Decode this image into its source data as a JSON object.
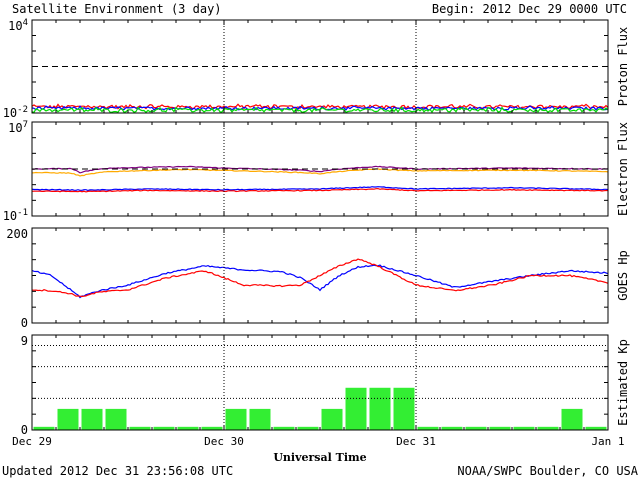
{
  "header": {
    "title": "Satellite Environment (3 day)",
    "begin": "Begin:  2012 Dec 29 0000 UTC"
  },
  "footer": {
    "updated": "Updated 2012 Dec 31 23:56:08 UTC",
    "credit": "NOAA/SWPC Boulder, CO USA",
    "xlabel": "Universal Time"
  },
  "chart_data": [
    {
      "type": "line",
      "ylabel": "Proton Flux",
      "yscale": "log",
      "ylim": [
        0.01,
        10000
      ],
      "y_tick_labels": [
        "10^4",
        "10^-2"
      ],
      "x_range_days": [
        0,
        3
      ],
      "threshold_line": 10,
      "series": [
        {
          "color": "#ff0000",
          "level": 0.025,
          "noise": 0.006
        },
        {
          "color": "#0000ff",
          "level": 0.02,
          "noise": 0.004
        },
        {
          "color": "#00dd00",
          "level": 0.015,
          "noise": 0.004
        }
      ]
    },
    {
      "type": "line",
      "ylabel": "Electron Flux",
      "yscale": "log",
      "ylim": [
        0.1,
        10000000
      ],
      "y_tick_labels": [
        "10^7",
        "10^-1"
      ],
      "x_range_days": [
        0,
        3
      ],
      "threshold_line": 1000,
      "series": [
        {
          "color": "#800080",
          "x": [
            0,
            0.2,
            0.25,
            0.4,
            0.8,
            1.0,
            1.4,
            1.5,
            1.6,
            1.8,
            1.9,
            2.0,
            2.5,
            3.0
          ],
          "y": [
            1000,
            1100,
            500,
            1200,
            1600,
            1200,
            800,
            600,
            1000,
            1600,
            1300,
            1000,
            1200,
            1000
          ]
        },
        {
          "color": "#ffaa00",
          "x": [
            0,
            0.2,
            0.25,
            0.4,
            0.8,
            1.0,
            1.4,
            1.5,
            1.6,
            1.8,
            1.9,
            2.0,
            2.5,
            3.0
          ],
          "y": [
            500,
            450,
            250,
            600,
            900,
            750,
            500,
            400,
            600,
            1000,
            800,
            700,
            800,
            600
          ]
        },
        {
          "color": "#0000ff",
          "x": [
            0,
            0.3,
            0.6,
            1.0,
            1.5,
            1.8,
            2.0,
            2.5,
            3.0
          ],
          "y": [
            18,
            16,
            20,
            17,
            20,
            30,
            20,
            25,
            18
          ]
        },
        {
          "color": "#ff0000",
          "x": [
            0,
            0.3,
            0.6,
            1.0,
            1.5,
            1.8,
            2.0,
            2.5,
            3.0
          ],
          "y": [
            13,
            12,
            15,
            13,
            15,
            20,
            14,
            17,
            14
          ]
        }
      ]
    },
    {
      "type": "line",
      "ylabel": "GOES Hp",
      "ylim": [
        0,
        200
      ],
      "y_tick_labels": [
        "200",
        "0"
      ],
      "x_range_days": [
        0,
        3
      ],
      "series": [
        {
          "color": "#0000ff",
          "x": [
            0,
            0.1,
            0.2,
            0.25,
            0.35,
            0.5,
            0.7,
            0.9,
            1.1,
            1.3,
            1.4,
            1.5,
            1.6,
            1.7,
            1.8,
            2.0,
            2.2,
            2.4,
            2.6,
            2.8,
            3.0
          ],
          "y": [
            110,
            100,
            70,
            55,
            68,
            80,
            105,
            120,
            112,
            108,
            95,
            70,
            100,
            118,
            122,
            100,
            75,
            88,
            100,
            110,
            105
          ]
        },
        {
          "color": "#ff0000",
          "x": [
            0,
            0.1,
            0.2,
            0.25,
            0.35,
            0.5,
            0.7,
            0.9,
            1.1,
            1.3,
            1.4,
            1.5,
            1.6,
            1.7,
            1.8,
            2.0,
            2.2,
            2.4,
            2.6,
            2.8,
            3.0
          ],
          "y": [
            70,
            68,
            62,
            55,
            65,
            70,
            95,
            110,
            80,
            78,
            80,
            100,
            120,
            135,
            120,
            80,
            68,
            80,
            100,
            100,
            85
          ]
        }
      ]
    },
    {
      "type": "bar",
      "ylabel": "Estimated Kp",
      "ylim": [
        0,
        9
      ],
      "y_tick_labels": [
        "9",
        "0"
      ],
      "x_range_days": [
        0,
        3
      ],
      "bar_color": "#33ee33",
      "values": [
        0.3,
        2,
        2,
        2,
        0.3,
        0.3,
        0.3,
        0.3,
        2,
        2,
        0.3,
        0.3,
        2,
        4,
        4,
        4,
        0.3,
        0.3,
        0.3,
        0.3,
        0.3,
        0.3,
        2,
        0.3
      ]
    }
  ],
  "x_ticks": [
    "Dec 29",
    "Dec 30",
    "Dec 31",
    "Jan 1"
  ]
}
